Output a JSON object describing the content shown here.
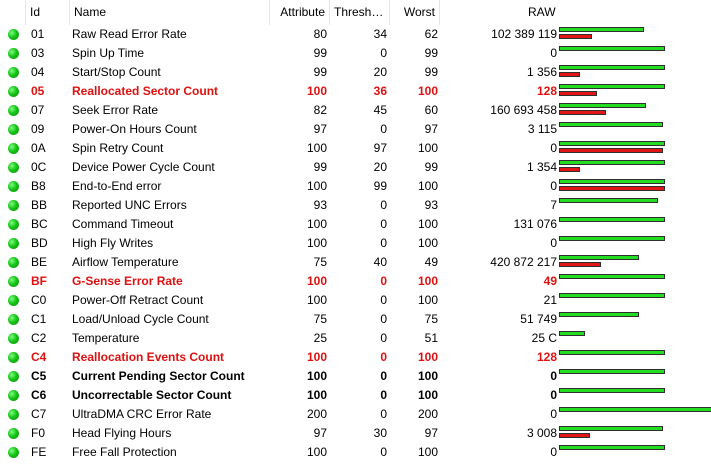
{
  "columns": [
    "Id",
    "Name",
    "Attribute",
    "Thresh…",
    "Worst",
    "RAW"
  ],
  "colors": {
    "status_ok": "#17c417",
    "warning_text": "#e01010",
    "bar_value": "#22dd22",
    "bar_raw": "#e11515"
  },
  "rows": [
    {
      "id": "01",
      "name": "Raw Read Error Rate",
      "attr": "80",
      "thresh": "34",
      "worst": "62",
      "raw": "102 389 119",
      "style": "normal",
      "bar_value_frac": 0.36,
      "bar_raw_frac": 0.14
    },
    {
      "id": "03",
      "name": "Spin Up Time",
      "attr": "99",
      "thresh": "0",
      "worst": "99",
      "raw": "0",
      "style": "normal",
      "bar_value_frac": 0.45,
      "bar_raw_frac": 0
    },
    {
      "id": "04",
      "name": "Start/Stop Count",
      "attr": "99",
      "thresh": "20",
      "worst": "99",
      "raw": "1 356",
      "style": "normal",
      "bar_value_frac": 0.45,
      "bar_raw_frac": 0.09
    },
    {
      "id": "05",
      "name": "Reallocated Sector Count",
      "attr": "100",
      "thresh": "36",
      "worst": "100",
      "raw": "128",
      "style": "warn",
      "bar_value_frac": 0.45,
      "bar_raw_frac": 0.16
    },
    {
      "id": "07",
      "name": "Seek Error Rate",
      "attr": "82",
      "thresh": "45",
      "worst": "60",
      "raw": "160 693 458",
      "style": "normal",
      "bar_value_frac": 0.37,
      "bar_raw_frac": 0.2
    },
    {
      "id": "09",
      "name": "Power-On Hours Count",
      "attr": "97",
      "thresh": "0",
      "worst": "97",
      "raw": "3 115",
      "style": "normal",
      "bar_value_frac": 0.44,
      "bar_raw_frac": 0
    },
    {
      "id": "0A",
      "name": "Spin Retry Count",
      "attr": "100",
      "thresh": "97",
      "worst": "100",
      "raw": "0",
      "style": "normal",
      "bar_value_frac": 0.45,
      "bar_raw_frac": 0.44
    },
    {
      "id": "0C",
      "name": "Device Power Cycle Count",
      "attr": "99",
      "thresh": "20",
      "worst": "99",
      "raw": "1 354",
      "style": "normal",
      "bar_value_frac": 0.45,
      "bar_raw_frac": 0.09
    },
    {
      "id": "B8",
      "name": "End-to-End error",
      "attr": "100",
      "thresh": "99",
      "worst": "100",
      "raw": "0",
      "style": "normal",
      "bar_value_frac": 0.45,
      "bar_raw_frac": 0.45
    },
    {
      "id": "BB",
      "name": "Reported UNC Errors",
      "attr": "93",
      "thresh": "0",
      "worst": "93",
      "raw": "7",
      "style": "normal",
      "bar_value_frac": 0.42,
      "bar_raw_frac": 0
    },
    {
      "id": "BC",
      "name": "Command Timeout",
      "attr": "100",
      "thresh": "0",
      "worst": "100",
      "raw": "131 076",
      "style": "normal",
      "bar_value_frac": 0.45,
      "bar_raw_frac": 0
    },
    {
      "id": "BD",
      "name": "High Fly Writes",
      "attr": "100",
      "thresh": "0",
      "worst": "100",
      "raw": "0",
      "style": "normal",
      "bar_value_frac": 0.45,
      "bar_raw_frac": 0
    },
    {
      "id": "BE",
      "name": "Airflow Temperature",
      "attr": "75",
      "thresh": "40",
      "worst": "49",
      "raw": "420 872 217",
      "style": "normal",
      "bar_value_frac": 0.34,
      "bar_raw_frac": 0.18
    },
    {
      "id": "BF",
      "name": "G-Sense Error Rate",
      "attr": "100",
      "thresh": "0",
      "worst": "100",
      "raw": "49",
      "style": "warn",
      "bar_value_frac": 0.45,
      "bar_raw_frac": 0
    },
    {
      "id": "C0",
      "name": "Power-Off Retract Count",
      "attr": "100",
      "thresh": "0",
      "worst": "100",
      "raw": "21",
      "style": "normal",
      "bar_value_frac": 0.45,
      "bar_raw_frac": 0
    },
    {
      "id": "C1",
      "name": "Load/Unload Cycle Count",
      "attr": "75",
      "thresh": "0",
      "worst": "75",
      "raw": "51 749",
      "style": "normal",
      "bar_value_frac": 0.34,
      "bar_raw_frac": 0
    },
    {
      "id": "C2",
      "name": "Temperature",
      "attr": "25",
      "thresh": "0",
      "worst": "51",
      "raw": "25 C",
      "style": "normal",
      "bar_value_frac": 0.11,
      "bar_raw_frac": 0
    },
    {
      "id": "C4",
      "name": "Reallocation Events Count",
      "attr": "100",
      "thresh": "0",
      "worst": "100",
      "raw": "128",
      "style": "warn",
      "bar_value_frac": 0.45,
      "bar_raw_frac": 0
    },
    {
      "id": "C5",
      "name": "Current Pending Sector Count",
      "attr": "100",
      "thresh": "0",
      "worst": "100",
      "raw": "0",
      "style": "bold",
      "bar_value_frac": 0.45,
      "bar_raw_frac": 0
    },
    {
      "id": "C6",
      "name": "Uncorrectable Sector Count",
      "attr": "100",
      "thresh": "0",
      "worst": "100",
      "raw": "0",
      "style": "bold",
      "bar_value_frac": 0.45,
      "bar_raw_frac": 0
    },
    {
      "id": "C7",
      "name": "UltraDMA CRC Error Rate",
      "attr": "200",
      "thresh": "0",
      "worst": "200",
      "raw": "0",
      "style": "normal",
      "bar_value_frac": 0.9,
      "bar_raw_frac": 0
    },
    {
      "id": "F0",
      "name": "Head Flying Hours",
      "attr": "97",
      "thresh": "30",
      "worst": "97",
      "raw": "3 008",
      "style": "normal",
      "bar_value_frac": 0.44,
      "bar_raw_frac": 0.13
    },
    {
      "id": "FE",
      "name": "Free Fall Protection",
      "attr": "100",
      "thresh": "0",
      "worst": "100",
      "raw": "0",
      "style": "normal",
      "bar_value_frac": 0.45,
      "bar_raw_frac": 0
    }
  ]
}
